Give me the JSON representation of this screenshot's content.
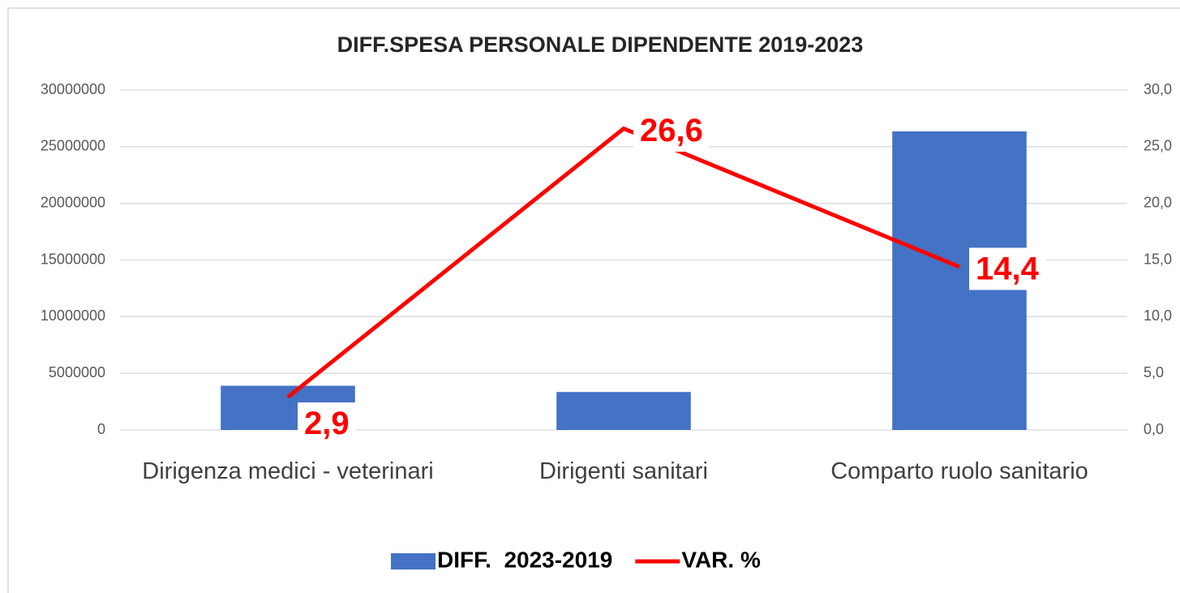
{
  "chart_data": {
    "type": "bar",
    "title": "DIFF.SPESA PERSONALE DIPENDENTE 2019-2023",
    "categories": [
      "Dirigenza medici - veterinari",
      "Dirigenti sanitari",
      "Comparto ruolo sanitario"
    ],
    "series": [
      {
        "name": "DIFF.  2023-2019",
        "type": "bar",
        "color": "#4472c4",
        "values": [
          3900000,
          3350000,
          26350000
        ]
      },
      {
        "name": "VAR. %",
        "type": "line",
        "axis": "y2",
        "color": "#ff0000",
        "values": [
          2.9,
          26.6,
          14.4
        ],
        "value_labels": [
          "2,9",
          "26,6",
          "14,4"
        ]
      }
    ],
    "ylim": [
      0,
      30000000
    ],
    "yticks": [
      0,
      5000000,
      10000000,
      15000000,
      20000000,
      25000000,
      30000000
    ],
    "y2lim": [
      0,
      30
    ],
    "y2ticks": [
      {
        "value": 0,
        "label": "0,0"
      },
      {
        "value": 5,
        "label": "5,0"
      },
      {
        "value": 10,
        "label": "10,0"
      },
      {
        "value": 15,
        "label": "15,0"
      },
      {
        "value": 20,
        "label": "20,0"
      },
      {
        "value": 25,
        "label": "25,0"
      },
      {
        "value": 30,
        "label": "30,0"
      }
    ],
    "grid": true,
    "legend": "bottom"
  }
}
